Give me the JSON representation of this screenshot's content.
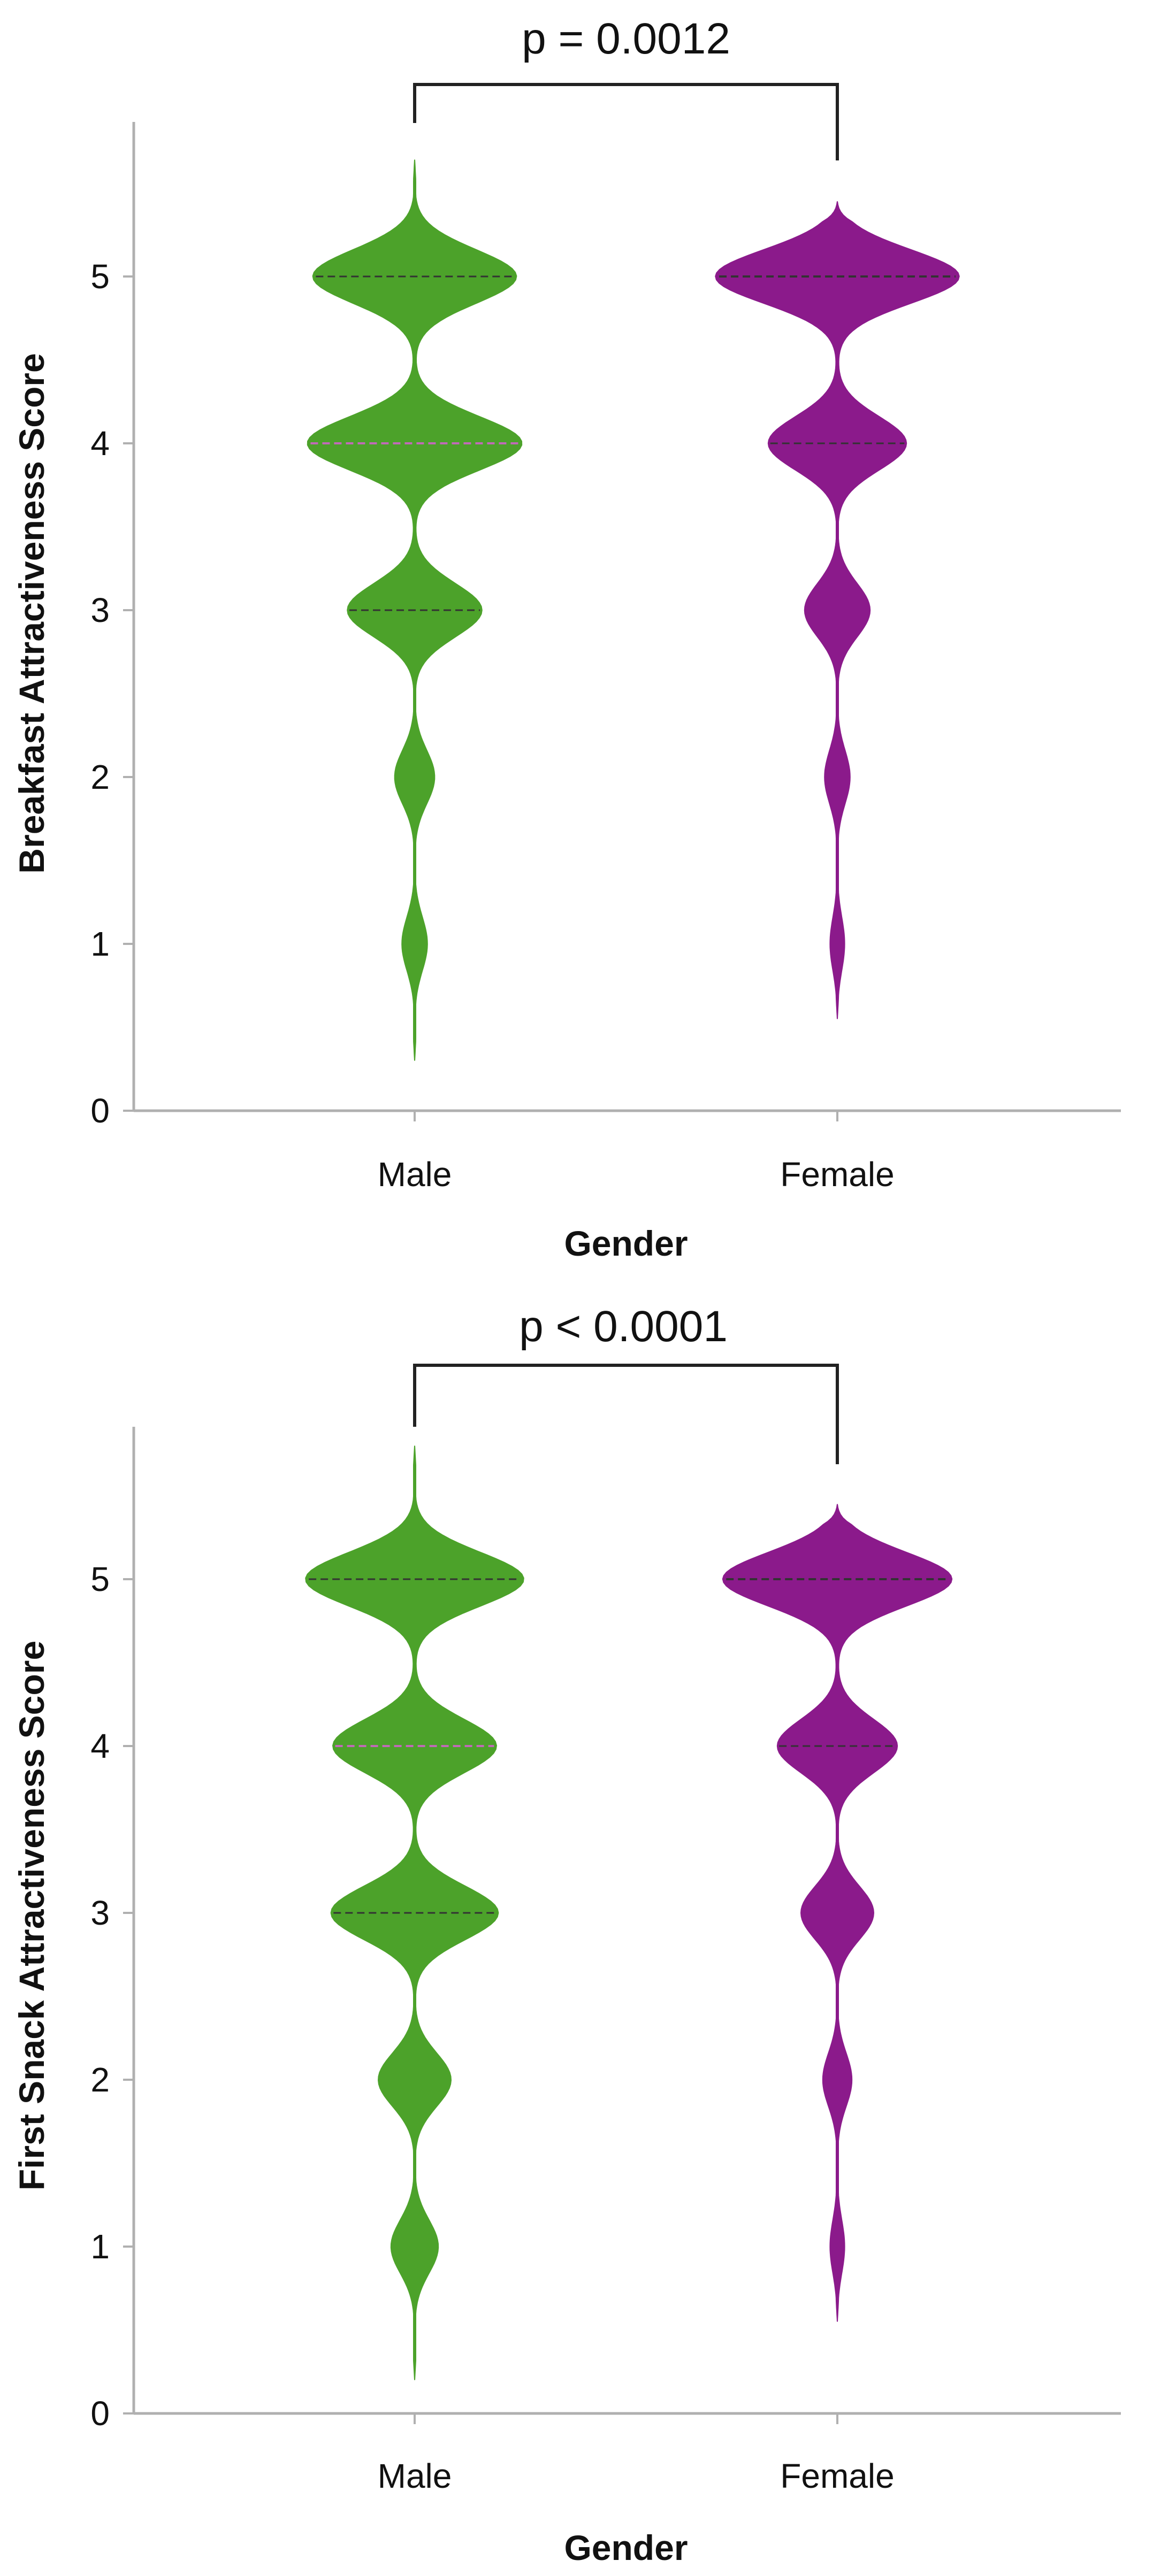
{
  "colors": {
    "male": "#4ca22a",
    "female": "#8b1a8b",
    "axis": "#b0b0b0",
    "text": "#111111"
  },
  "chart_data": [
    {
      "type": "violin",
      "title": "",
      "xlabel": "Gender",
      "ylabel": "Breakfast Attractiveness Score",
      "categories": [
        "Male",
        "Female"
      ],
      "ylim": [
        0,
        5.8
      ],
      "yticks": [
        "0",
        "1",
        "2",
        "3",
        "4",
        "5"
      ],
      "annotation": "p = 0.0012",
      "series": [
        {
          "name": "Male",
          "color": "#4ca22a",
          "yrange": [
            0.3,
            5.7
          ],
          "modes": [
            {
              "y": 1,
              "w": 0.07
            },
            {
              "y": 2,
              "w": 0.11
            },
            {
              "y": 3,
              "w": 0.37
            },
            {
              "y": 4,
              "w": 0.59
            },
            {
              "y": 5,
              "w": 0.56
            }
          ],
          "quartiles": [
            3,
            4,
            5
          ],
          "median": 4
        },
        {
          "name": "Female",
          "color": "#8b1a8b",
          "yrange": [
            0.55,
            5.45
          ],
          "modes": [
            {
              "y": 1,
              "w": 0.04
            },
            {
              "y": 2,
              "w": 0.07
            },
            {
              "y": 3,
              "w": 0.18
            },
            {
              "y": 4,
              "w": 0.38
            },
            {
              "y": 5,
              "w": 0.67
            }
          ],
          "quartiles": [
            4,
            5,
            5
          ],
          "median": 5
        }
      ]
    },
    {
      "type": "violin",
      "title": "",
      "xlabel": "Gender",
      "ylabel": "First Snack Attractiveness Score",
      "categories": [
        "Male",
        "Female"
      ],
      "ylim": [
        0,
        5.8
      ],
      "yticks": [
        "0",
        "1",
        "2",
        "3",
        "4",
        "5"
      ],
      "annotation": "p < 0.0001",
      "series": [
        {
          "name": "Male",
          "color": "#4ca22a",
          "yrange": [
            0.2,
            5.8
          ],
          "modes": [
            {
              "y": 1,
              "w": 0.13
            },
            {
              "y": 2,
              "w": 0.2
            },
            {
              "y": 3,
              "w": 0.46
            },
            {
              "y": 4,
              "w": 0.45
            },
            {
              "y": 5,
              "w": 0.6
            }
          ],
          "quartiles": [
            3,
            4,
            5
          ],
          "median": 4
        },
        {
          "name": "Female",
          "color": "#8b1a8b",
          "yrange": [
            0.55,
            5.45
          ],
          "modes": [
            {
              "y": 1,
              "w": 0.04
            },
            {
              "y": 2,
              "w": 0.08
            },
            {
              "y": 3,
              "w": 0.2
            },
            {
              "y": 4,
              "w": 0.33
            },
            {
              "y": 5,
              "w": 0.63
            }
          ],
          "quartiles": [
            4,
            5,
            5
          ],
          "median": 5
        }
      ]
    }
  ]
}
